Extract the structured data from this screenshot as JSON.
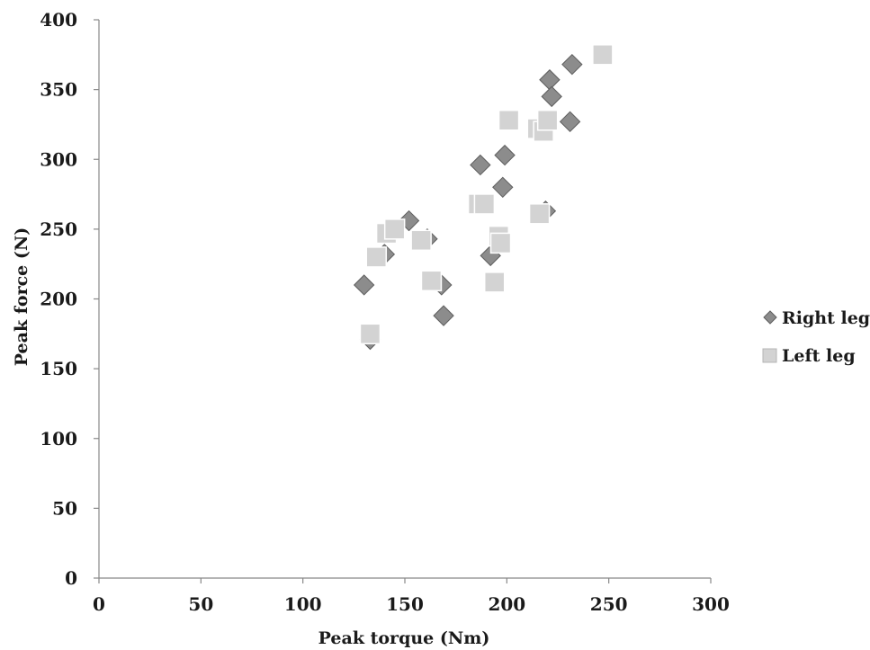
{
  "chart_data": {
    "type": "scatter",
    "title": "",
    "xlabel": "Peak torque (Nm)",
    "ylabel": "Peak force  (N)",
    "xlim": [
      0,
      300
    ],
    "ylim": [
      0,
      400
    ],
    "xticks": [
      0,
      50,
      100,
      150,
      200,
      250,
      300
    ],
    "yticks": [
      0,
      50,
      100,
      150,
      200,
      250,
      300,
      350,
      400
    ],
    "grid": false,
    "legend_position": "right",
    "series": [
      {
        "name": "Right leg",
        "marker": "diamond",
        "color": "#8c8c8c",
        "points": [
          [
            130,
            210
          ],
          [
            133,
            171
          ],
          [
            140,
            232
          ],
          [
            152,
            256
          ],
          [
            161,
            243
          ],
          [
            168,
            210
          ],
          [
            169,
            188
          ],
          [
            187,
            296
          ],
          [
            192,
            231
          ],
          [
            198,
            280
          ],
          [
            199,
            303
          ],
          [
            219,
            263
          ],
          [
            221,
            357
          ],
          [
            222,
            345
          ],
          [
            231,
            327
          ],
          [
            232,
            368
          ]
        ]
      },
      {
        "name": "Left leg",
        "marker": "square",
        "color": "#d3d3d3",
        "points": [
          [
            133,
            175
          ],
          [
            136,
            230
          ],
          [
            141,
            247
          ],
          [
            145,
            250
          ],
          [
            158,
            242
          ],
          [
            163,
            213
          ],
          [
            186,
            268
          ],
          [
            189,
            268
          ],
          [
            194,
            212
          ],
          [
            196,
            245
          ],
          [
            197,
            240
          ],
          [
            201,
            328
          ],
          [
            215,
            322
          ],
          [
            216,
            261
          ],
          [
            218,
            320
          ],
          [
            220,
            328
          ],
          [
            247,
            375
          ]
        ]
      }
    ]
  }
}
